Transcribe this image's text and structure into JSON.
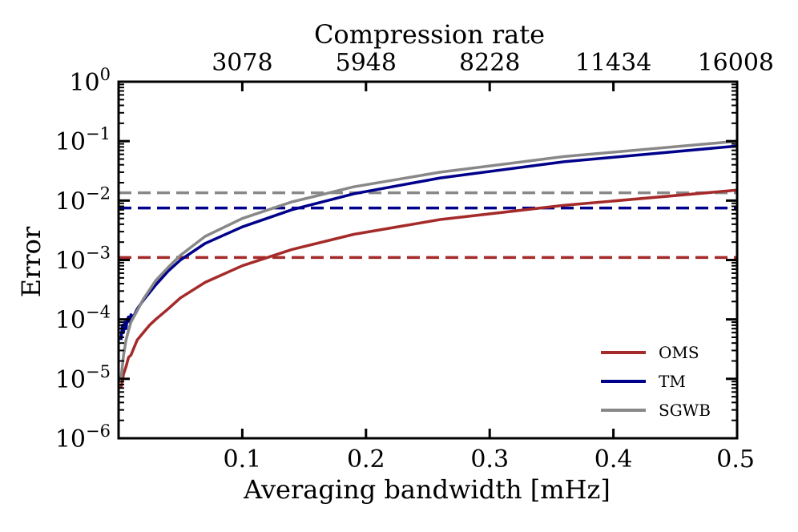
{
  "chart_data": {
    "type": "line",
    "title": "",
    "xlabel": "Averaging bandwidth [mHz]",
    "ylabel": "Error",
    "top_xlabel": "Compression rate",
    "xlim": [
      0.0,
      0.5
    ],
    "ylim_log10": [
      -6,
      0
    ],
    "yscale": "log",
    "x_ticks": [
      0.1,
      0.2,
      0.3,
      0.4,
      0.5
    ],
    "x_tick_labels": [
      "0.1",
      "0.2",
      "0.3",
      "0.4",
      "0.5"
    ],
    "y_ticks_exp": [
      0,
      -1,
      -2,
      -3,
      -4,
      -5,
      -6
    ],
    "y_tick_base": "10",
    "y_tick_exponents": [
      "0",
      "−1",
      "−2",
      "−3",
      "−4",
      "−5",
      "−6"
    ],
    "top_ticks_x": [
      0.1,
      0.2,
      0.3,
      0.4,
      0.5
    ],
    "top_tick_labels": [
      "3078",
      "5948",
      "8228",
      "11434",
      "16008"
    ],
    "legend_position": "bottom-right",
    "series": [
      {
        "name": "OMS",
        "color": "#a52a2a",
        "x": [
          0.002,
          0.004,
          0.006,
          0.008,
          0.01,
          0.015,
          0.02,
          0.025,
          0.03,
          0.04,
          0.05,
          0.07,
          0.1,
          0.14,
          0.19,
          0.26,
          0.36,
          0.5
        ],
        "y": [
          7e-06,
          1.2e-05,
          1.6e-05,
          2.3e-05,
          2.5e-05,
          4.5e-05,
          6e-05,
          8e-05,
          0.0001,
          0.00015,
          0.00023,
          0.00042,
          0.0008,
          0.0015,
          0.0027,
          0.0048,
          0.0083,
          0.015
        ]
      },
      {
        "name": "TM",
        "color": "#00008b",
        "x": [
          0.002,
          0.003,
          0.004,
          0.005,
          0.006,
          0.007,
          0.008,
          0.009,
          0.01,
          0.012,
          0.015,
          0.02,
          0.03,
          0.04,
          0.05,
          0.07,
          0.1,
          0.14,
          0.19,
          0.26,
          0.36,
          0.5
        ],
        "y": [
          4.5e-05,
          8e-05,
          6e-05,
          9e-05,
          7e-05,
          0.0001,
          0.00011,
          9e-05,
          0.00012,
          0.00011,
          0.00015,
          0.00021,
          0.00038,
          0.00065,
          0.001,
          0.0019,
          0.0036,
          0.007,
          0.013,
          0.024,
          0.045,
          0.083
        ]
      },
      {
        "name": "SGWB",
        "color": "#888888",
        "x": [
          0.002,
          0.004,
          0.006,
          0.008,
          0.01,
          0.015,
          0.02,
          0.03,
          0.04,
          0.05,
          0.07,
          0.1,
          0.14,
          0.19,
          0.26,
          0.36,
          0.5
        ],
        "y": [
          1e-05,
          2.5e-05,
          4.5e-05,
          6.5e-05,
          9e-05,
          0.00014,
          0.00022,
          0.00045,
          0.00075,
          0.0012,
          0.0025,
          0.005,
          0.0095,
          0.017,
          0.03,
          0.055,
          0.1
        ]
      }
    ],
    "hlines": [
      {
        "name": "OMS threshold",
        "color": "#a52a2a",
        "y": 0.0011
      },
      {
        "name": "TM threshold",
        "color": "#00008b",
        "y": 0.0075
      },
      {
        "name": "SGWB threshold",
        "color": "#888888",
        "y": 0.0135
      }
    ]
  }
}
